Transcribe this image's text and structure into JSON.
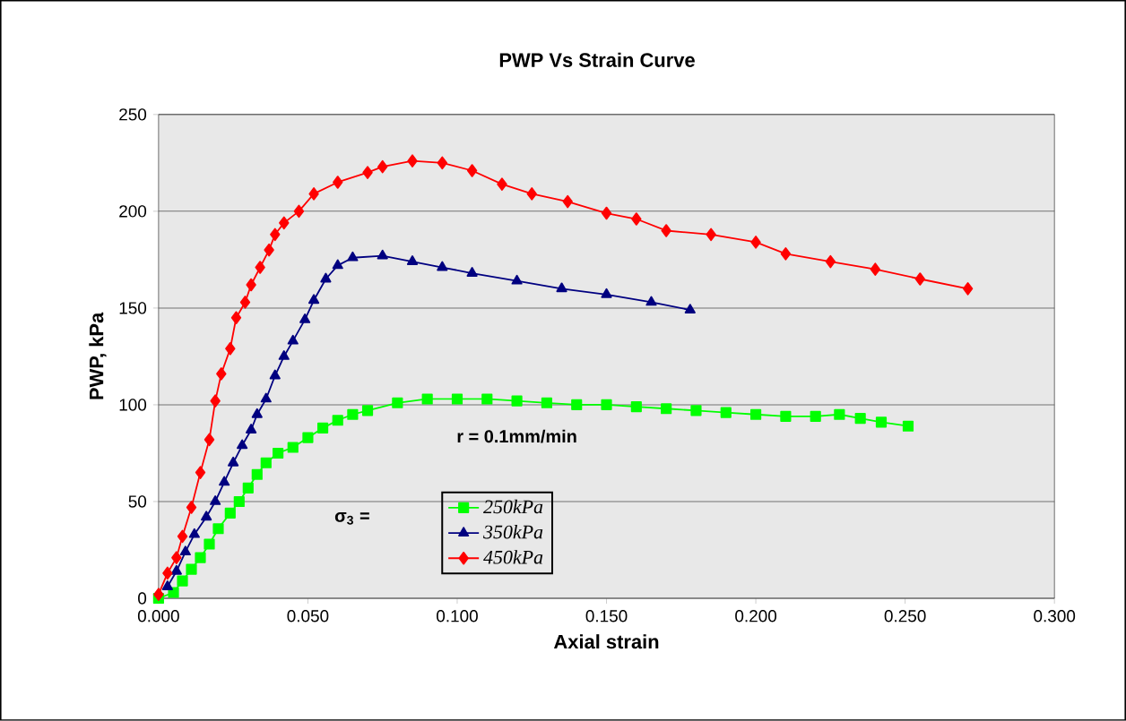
{
  "chart_data": {
    "type": "line",
    "title": "PWP Vs Strain Curve",
    "xlabel": "Axial strain",
    "ylabel": "PWP, kPa",
    "legend_title": "σ$_{3}$ =",
    "annotations": [
      "r = 0.1mm/min"
    ],
    "xlim": [
      0,
      0.3
    ],
    "xticks": [
      {
        "value": 0,
        "label": "0.000"
      },
      {
        "value": 0.05,
        "label": "0.050"
      },
      {
        "value": 0.1,
        "label": "0.100"
      },
      {
        "value": 0.15,
        "label": "0.150"
      },
      {
        "value": 0.2,
        "label": "0.200"
      },
      {
        "value": 0.25,
        "label": "0.250"
      },
      {
        "value": 0.3,
        "label": "0.300"
      }
    ],
    "ylim": [
      0,
      250
    ],
    "yticks": [
      0,
      50,
      100,
      150,
      200,
      250
    ],
    "grid": "y",
    "legend": "bottom",
    "series": [
      {
        "name": "250kPa",
        "color": "#00ff00",
        "marker": "square",
        "x": [
          0,
          0.005,
          0.008,
          0.011,
          0.014,
          0.017,
          0.02,
          0.024,
          0.027,
          0.03,
          0.033,
          0.036,
          0.04,
          0.045,
          0.05,
          0.055,
          0.06,
          0.065,
          0.07,
          0.08,
          0.09,
          0.1,
          0.11,
          0.12,
          0.13,
          0.14,
          0.15,
          0.16,
          0.17,
          0.18,
          0.19,
          0.2,
          0.21,
          0.22,
          0.228,
          0.235,
          0.242,
          0.251
        ],
        "values": [
          0,
          3,
          9,
          15,
          21,
          28,
          36,
          44,
          50,
          57,
          64,
          70,
          75,
          78,
          83,
          88,
          92,
          95,
          97,
          101,
          103,
          103,
          103,
          102,
          101,
          100,
          100,
          99,
          98,
          97,
          96,
          95,
          94,
          94,
          95,
          93,
          91,
          89
        ]
      },
      {
        "name": "350kPa",
        "color": "#000080",
        "marker": "triangle",
        "x": [
          0.003,
          0.006,
          0.009,
          0.012,
          0.016,
          0.019,
          0.022,
          0.025,
          0.028,
          0.031,
          0.033,
          0.036,
          0.039,
          0.042,
          0.045,
          0.049,
          0.052,
          0.056,
          0.06,
          0.065,
          0.075,
          0.085,
          0.095,
          0.105,
          0.12,
          0.135,
          0.15,
          0.165,
          0.178
        ],
        "values": [
          6,
          14,
          24,
          33,
          42,
          50,
          60,
          70,
          79,
          87,
          95,
          103,
          115,
          125,
          133,
          144,
          154,
          165,
          172,
          176,
          177,
          174,
          171,
          168,
          164,
          160,
          157,
          153,
          149
        ]
      },
      {
        "name": "450kPa",
        "color": "#ff0000",
        "marker": "diamond",
        "x": [
          0,
          0.003,
          0.006,
          0.008,
          0.011,
          0.014,
          0.017,
          0.019,
          0.021,
          0.024,
          0.026,
          0.029,
          0.031,
          0.034,
          0.037,
          0.039,
          0.042,
          0.047,
          0.052,
          0.06,
          0.07,
          0.075,
          0.085,
          0.095,
          0.105,
          0.115,
          0.125,
          0.137,
          0.15,
          0.16,
          0.17,
          0.185,
          0.2,
          0.21,
          0.225,
          0.24,
          0.255,
          0.271
        ],
        "values": [
          2,
          13,
          21,
          32,
          47,
          65,
          82,
          102,
          116,
          129,
          145,
          153,
          162,
          171,
          180,
          188,
          194,
          200,
          209,
          215,
          220,
          223,
          226,
          225,
          221,
          214,
          209,
          205,
          199,
          196,
          190,
          188,
          184,
          178,
          174,
          170,
          165,
          160
        ]
      }
    ]
  }
}
